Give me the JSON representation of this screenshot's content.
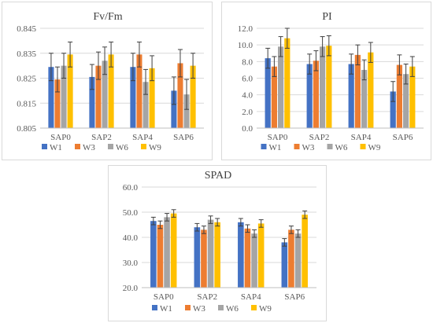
{
  "chart_data": [
    {
      "type": "bar",
      "title": "Fv/Fm",
      "categories": [
        "SAP0",
        "SAP2",
        "SAP4",
        "SAP6"
      ],
      "ylim": [
        0.805,
        0.845
      ],
      "yticks": [
        "0.805",
        "0.815",
        "0.825",
        "0.835",
        "0.845"
      ],
      "grid": true,
      "legend": "bottom",
      "error_bars": true,
      "series": [
        {
          "name": "W1",
          "color": "#4472C4",
          "values": [
            0.8295,
            0.8255,
            0.8295,
            0.82
          ],
          "errors": [
            0.0055,
            0.005,
            0.0055,
            0.0055
          ]
        },
        {
          "name": "W3",
          "color": "#ED7D31",
          "values": [
            0.8245,
            0.83,
            0.8345,
            0.831
          ],
          "errors": [
            0.005,
            0.0055,
            0.005,
            0.0055
          ]
        },
        {
          "name": "W6",
          "color": "#A5A5A5",
          "values": [
            0.83,
            0.832,
            0.8235,
            0.8185
          ],
          "errors": [
            0.005,
            0.0055,
            0.005,
            0.006
          ]
        },
        {
          "name": "W9",
          "color": "#FFC000",
          "values": [
            0.8345,
            0.8345,
            0.829,
            0.83
          ],
          "errors": [
            0.005,
            0.005,
            0.005,
            0.005
          ]
        }
      ]
    },
    {
      "type": "bar",
      "title": "PI",
      "categories": [
        "SAP0",
        "SAP2",
        "SAP4",
        "SAP6"
      ],
      "ylim": [
        0,
        12
      ],
      "yticks": [
        "0.0",
        "2.0",
        "4.0",
        "6.0",
        "8.0",
        "10.0",
        "12.0"
      ],
      "grid": true,
      "legend": "bottom",
      "error_bars": true,
      "series": [
        {
          "name": "W1",
          "color": "#4472C4",
          "values": [
            8.4,
            7.7,
            7.7,
            4.4
          ],
          "errors": [
            1.2,
            1.2,
            1.2,
            1.2
          ]
        },
        {
          "name": "W3",
          "color": "#ED7D31",
          "values": [
            7.4,
            8.1,
            8.8,
            7.6
          ],
          "errors": [
            1.2,
            1.2,
            1.2,
            1.2
          ]
        },
        {
          "name": "W6",
          "color": "#A5A5A5",
          "values": [
            9.8,
            9.8,
            7.0,
            6.5
          ],
          "errors": [
            1.2,
            1.2,
            1.2,
            1.2
          ]
        },
        {
          "name": "W9",
          "color": "#FFC000",
          "values": [
            10.8,
            9.9,
            9.1,
            7.4
          ],
          "errors": [
            1.2,
            1.2,
            1.2,
            1.2
          ]
        }
      ]
    },
    {
      "type": "bar",
      "title": "SPAD",
      "categories": [
        "SAP0",
        "SAP2",
        "SAP4",
        "SAP6"
      ],
      "ylim": [
        20,
        60
      ],
      "yticks": [
        "20.0",
        "30.0",
        "40.0",
        "50.0",
        "60.0"
      ],
      "grid": true,
      "legend": "bottom",
      "error_bars": true,
      "series": [
        {
          "name": "W1",
          "color": "#4472C4",
          "values": [
            46.5,
            44.0,
            46.0,
            38.0
          ],
          "errors": [
            1.5,
            1.5,
            1.5,
            1.5
          ]
        },
        {
          "name": "W3",
          "color": "#ED7D31",
          "values": [
            45.0,
            43.0,
            43.5,
            43.0
          ],
          "errors": [
            1.5,
            1.5,
            1.5,
            1.5
          ]
        },
        {
          "name": "W6",
          "color": "#A5A5A5",
          "values": [
            48.0,
            47.0,
            41.5,
            41.5
          ],
          "errors": [
            1.5,
            1.5,
            1.5,
            1.5
          ]
        },
        {
          "name": "W9",
          "color": "#FFC000",
          "values": [
            49.5,
            46.0,
            45.5,
            49.0
          ],
          "errors": [
            1.5,
            1.5,
            1.5,
            1.5
          ]
        }
      ]
    }
  ]
}
